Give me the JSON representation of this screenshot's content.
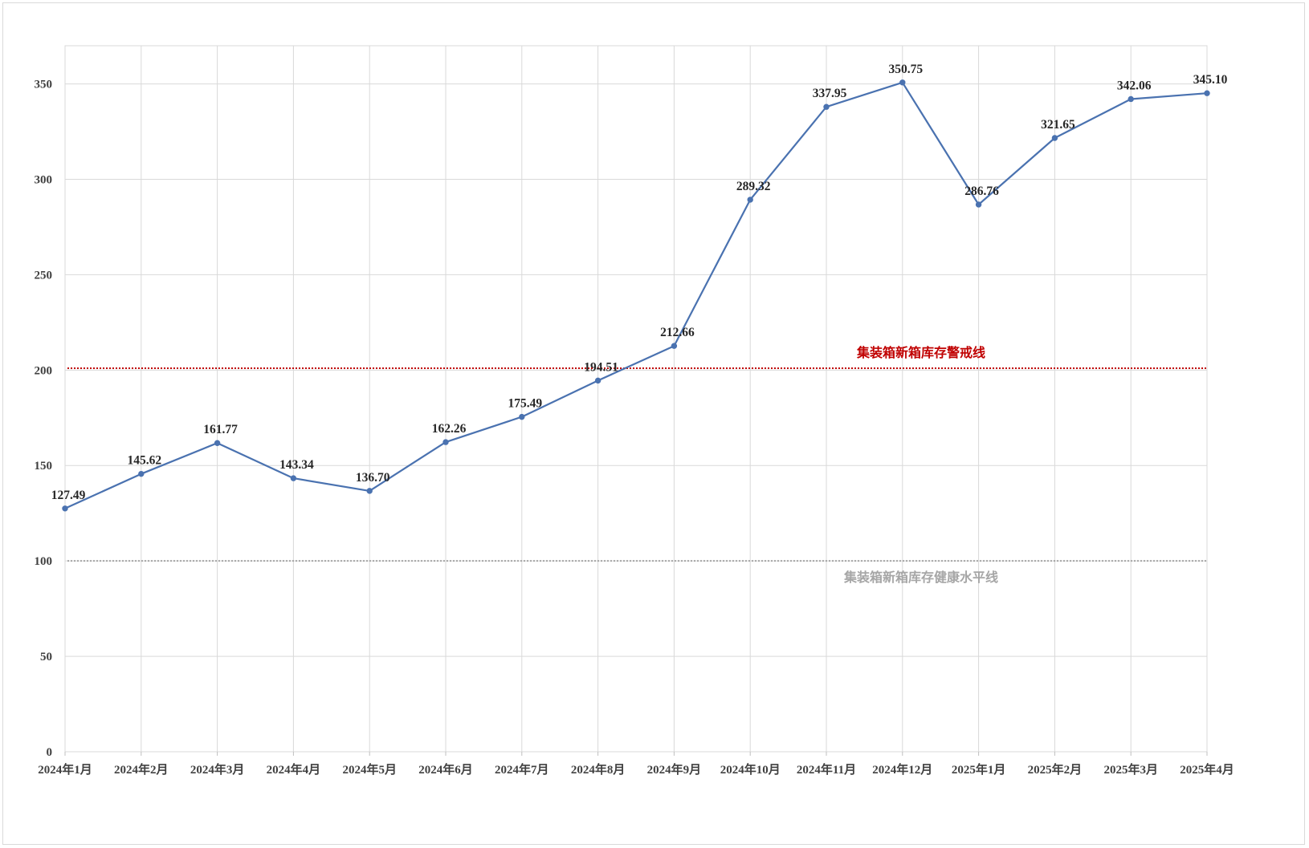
{
  "chart_data": {
    "type": "line",
    "title": "",
    "xlabel": "",
    "ylabel": "",
    "ylim": [
      0,
      370
    ],
    "yticks": [
      0,
      50,
      100,
      150,
      200,
      250,
      300,
      350
    ],
    "grid": true,
    "categories": [
      "2024年1月",
      "2024年2月",
      "2024年3月",
      "2024年4月",
      "2024年5月",
      "2024年6月",
      "2024年7月",
      "2024年8月",
      "2024年9月",
      "2024年10月",
      "2024年11月",
      "2024年12月",
      "2025年1月",
      "2025年2月",
      "2025年3月",
      "2025年4月"
    ],
    "series": [
      {
        "values": [
          127.49,
          145.62,
          161.77,
          143.34,
          136.7,
          162.26,
          175.49,
          194.51,
          212.66,
          289.32,
          337.95,
          350.75,
          286.76,
          321.65,
          342.06,
          345.1
        ],
        "labels": [
          "127.49",
          "145.62",
          "161.77",
          "143.34",
          "136.70",
          "162.26",
          "175.49",
          "194.51",
          "212.66",
          "289.32",
          "337.95",
          "350.75",
          "286.76",
          "321.65",
          "342.06",
          "345.10"
        ],
        "color": "#4a72b0"
      }
    ],
    "reference_lines": [
      {
        "label": "集装箱新箱库存警戒线",
        "value": 201,
        "color": "#c00000",
        "style": "dotted"
      },
      {
        "label": "集装箱新箱库存健康水平线",
        "value": 100,
        "color": "#a6a6a6",
        "style": "dotted"
      }
    ],
    "colors": {
      "grid": "#d9d9d9",
      "axis_text": "#404040",
      "label_text": "#262626"
    }
  }
}
